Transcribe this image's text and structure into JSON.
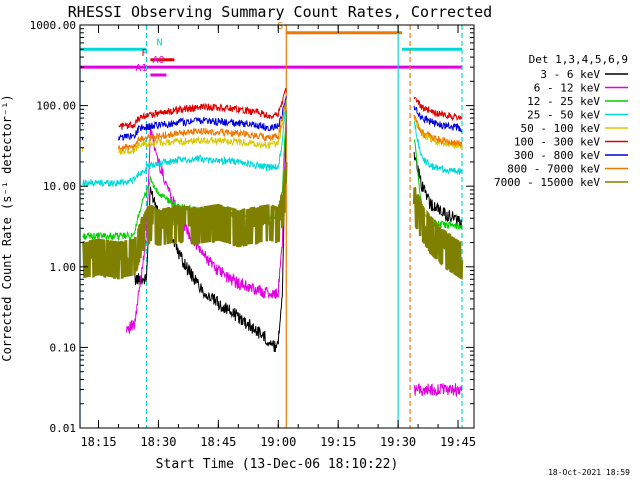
{
  "chart_data": {
    "type": "line",
    "title": "RHESSI Observing Summary Count Rates, Corrected",
    "xlabel": "Start Time (13-Dec-06 18:10:22)",
    "ylabel": "Corrected Count Rate (s⁻¹ detector⁻¹)",
    "y_scale": "log",
    "ylim": [
      0.01,
      1000
    ],
    "xlim": [
      "18:10:22",
      "19:49:00"
    ],
    "x_ticks": [
      "18:15",
      "18:30",
      "18:45",
      "19:00",
      "19:15",
      "19:30",
      "19:45"
    ],
    "y_ticks": [
      "1000.00",
      "100.00",
      "10.00",
      "1.00",
      "0.10",
      "0.01"
    ],
    "legend_title": "Det 1,3,4,5,6,9",
    "legend_position": "right",
    "footer": "18-Oct-2021 18:59",
    "series": [
      {
        "name": "3 - 6 keV",
        "color": "#000000",
        "x": [
          "18:24",
          "18:27",
          "18:28",
          "18:30",
          "18:33",
          "18:36",
          "18:39",
          "18:42",
          "18:45",
          "18:48",
          "18:51",
          "18:54",
          "18:57",
          "18:59",
          "19:00",
          "19:01",
          "19:02",
          "19:34",
          "19:36",
          "19:38",
          "19:42",
          "19:46"
        ],
        "values": [
          0.7,
          0.7,
          9,
          5,
          2.5,
          1.2,
          0.7,
          0.45,
          0.35,
          0.28,
          0.22,
          0.17,
          0.13,
          0.1,
          0.12,
          0.5,
          70,
          25,
          10,
          6,
          4.5,
          3.5
        ]
      },
      {
        "name": "6 - 12 keV",
        "color": "#e000e0",
        "x": [
          "18:22",
          "18:24",
          "18:27",
          "18:28",
          "18:30",
          "18:33",
          "18:36",
          "18:39",
          "18:42",
          "18:45",
          "18:48",
          "18:51",
          "18:54",
          "18:57",
          "18:59",
          "19:00",
          "19:01",
          "19:02",
          "19:34",
          "19:36",
          "19:38",
          "19:42",
          "19:46"
        ],
        "values": [
          0.18,
          0.18,
          2.5,
          50,
          20,
          8,
          3.5,
          2,
          1.3,
          0.9,
          0.7,
          0.6,
          0.52,
          0.48,
          0.45,
          0.5,
          2,
          90,
          0.03,
          0.03,
          0.03,
          0.03,
          0.03
        ]
      },
      {
        "name": "12 - 25 keV",
        "color": "#00d000",
        "x": [
          "18:11",
          "18:15",
          "18:20",
          "18:24",
          "18:25",
          "18:28",
          "18:30",
          "18:35",
          "18:40",
          "18:45",
          "18:50",
          "18:55",
          "18:58",
          "19:00",
          "19:01",
          "19:02",
          "19:34",
          "19:36",
          "19:38",
          "19:42",
          "19:46"
        ],
        "values": [
          2.4,
          2.4,
          2.4,
          2.4,
          4.5,
          12,
          8,
          5.5,
          5,
          4.6,
          4.4,
          4.2,
          4.0,
          4.2,
          9,
          80,
          40,
          5,
          3.5,
          3.3,
          3.2
        ]
      },
      {
        "name": "25 - 50 keV",
        "color": "#00d8d8",
        "x": [
          "18:11",
          "18:15",
          "18:20",
          "18:24",
          "18:25",
          "18:28",
          "18:32",
          "18:36",
          "18:40",
          "18:45",
          "18:50",
          "18:55",
          "18:58",
          "19:00",
          "19:01",
          "19:02",
          "19:34",
          "19:36",
          "19:38",
          "19:42",
          "19:46"
        ],
        "values": [
          11,
          11,
          11,
          12,
          14,
          18,
          20,
          21,
          22,
          21,
          20,
          18,
          17,
          18,
          35,
          110,
          60,
          22,
          18,
          16,
          15
        ]
      },
      {
        "name": "50 - 100 keV",
        "color": "#d8c800",
        "x": [
          "18:11",
          "18:20",
          "18:24",
          "18:25",
          "18:30",
          "18:36",
          "18:42",
          "18:48",
          "18:54",
          "18:58",
          "19:00",
          "19:01",
          "19:02",
          "19:34",
          "19:36",
          "19:40",
          "19:46"
        ],
        "values": [
          27,
          27,
          28,
          33,
          35,
          36,
          37,
          36,
          34,
          32,
          35,
          60,
          110,
          70,
          45,
          35,
          32
        ]
      },
      {
        "name": "100 - 300 keV",
        "color": "#e00000",
        "x": [
          "18:11",
          "18:20",
          "18:24",
          "18:25",
          "18:30",
          "18:36",
          "18:42",
          "18:48",
          "18:54",
          "18:58",
          "19:00",
          "19:01",
          "19:02",
          "19:34",
          "19:36",
          "19:40",
          "19:46"
        ],
        "values": [
          55,
          55,
          57,
          70,
          80,
          90,
          97,
          92,
          84,
          75,
          80,
          110,
          160,
          130,
          95,
          78,
          70
        ]
      },
      {
        "name": "300 - 800 keV",
        "color": "#0000d8",
        "x": [
          "18:11",
          "18:20",
          "18:24",
          "18:25",
          "18:30",
          "18:36",
          "18:42",
          "18:48",
          "18:54",
          "18:58",
          "19:00",
          "19:01",
          "19:02",
          "19:34",
          "19:36",
          "19:40",
          "19:46"
        ],
        "values": [
          40,
          40,
          42,
          52,
          57,
          62,
          65,
          62,
          58,
          52,
          55,
          80,
          120,
          100,
          70,
          58,
          52
        ]
      },
      {
        "name": "800 - 7000 keV",
        "color": "#f07800",
        "x": [
          "18:11",
          "18:20",
          "18:24",
          "18:25",
          "18:30",
          "18:36",
          "18:42",
          "18:48",
          "18:54",
          "18:58",
          "19:00",
          "19:01",
          "19:02",
          "19:34",
          "19:36",
          "19:40",
          "19:46"
        ],
        "values": [
          30,
          30,
          31,
          38,
          42,
          46,
          48,
          46,
          43,
          39,
          42,
          70,
          110,
          75,
          45,
          38,
          33
        ]
      },
      {
        "name": "7000 - 15000 keV",
        "color": "#808000",
        "x": [
          "18:11",
          "18:15",
          "18:20",
          "18:24",
          "18:26",
          "18:28",
          "18:30",
          "18:35",
          "18:40",
          "18:45",
          "18:50",
          "18:55",
          "18:58",
          "19:00",
          "19:01",
          "19:02",
          "19:34",
          "19:36",
          "19:38",
          "19:42",
          "19:46"
        ],
        "values": [
          1.2,
          1.3,
          1.2,
          1.3,
          2.5,
          3.5,
          3,
          3.4,
          3.2,
          3.5,
          3,
          3.3,
          3.5,
          3.2,
          5,
          12,
          6,
          3.5,
          2.5,
          1.6,
          1.2
        ]
      }
    ],
    "flags": [
      {
        "label": "N",
        "color": "#00d8d8",
        "level": 500,
        "x": [
          [
            "18:10:22",
            "18:27"
          ],
          [
            "19:31",
            "19:46"
          ]
        ]
      },
      {
        "label": "S",
        "color": "#f07800",
        "level": 800,
        "x": [
          [
            "19:02",
            "19:31"
          ]
        ]
      },
      {
        "label": "F",
        "color": "#e00000",
        "level": 370,
        "x": [
          [
            "18:28",
            "18:34"
          ]
        ]
      },
      {
        "label": "A0",
        "color": "#e000e0",
        "level": 300,
        "x": [
          [
            "18:10:22",
            "19:46"
          ]
        ]
      },
      {
        "label": "A1",
        "color": "#e000e0",
        "level": 240,
        "x": [
          [
            "18:28",
            "18:32"
          ]
        ]
      }
    ],
    "vertical_markers": [
      {
        "x": "18:10:22",
        "color": "#00d8d8",
        "style": "solid"
      },
      {
        "x": "18:27",
        "color": "#00d8d8",
        "style": "dashed"
      },
      {
        "x": "19:02",
        "color": "#f07800",
        "style": "solid"
      },
      {
        "x": "19:30",
        "color": "#00d8d8",
        "style": "solid"
      },
      {
        "x": "19:33",
        "color": "#f07800",
        "style": "dashed"
      },
      {
        "x": "19:46",
        "color": "#00d8d8",
        "style": "dashed"
      }
    ]
  }
}
